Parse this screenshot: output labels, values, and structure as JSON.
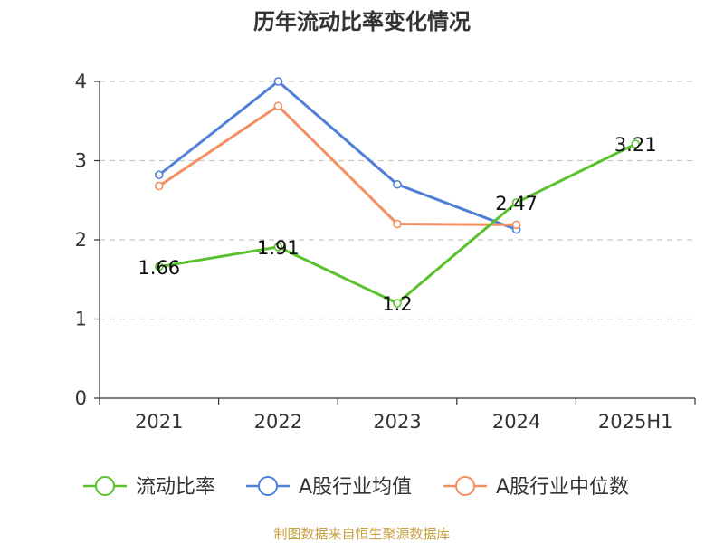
{
  "chart_data": {
    "type": "line",
    "title": "历年流动比率变化情况",
    "xlabel": "",
    "ylabel": "",
    "categories": [
      "2021",
      "2022",
      "2023",
      "2024",
      "2025H1"
    ],
    "ylim": [
      0,
      4
    ],
    "yticks": [
      "0",
      "1",
      "2",
      "3",
      "4"
    ],
    "grid": true,
    "legend_position": "bottom",
    "series": [
      {
        "name": "流动比率",
        "color": "#5cc12e",
        "values": [
          1.66,
          1.91,
          1.2,
          2.47,
          3.21
        ],
        "labels": [
          "1.66",
          "1.91",
          "1.2",
          "2.47",
          "3.21"
        ]
      },
      {
        "name": "A股行业均值",
        "color": "#4f7fd6",
        "values": [
          2.82,
          4.0,
          2.7,
          2.13,
          null
        ]
      },
      {
        "name": "A股行业中位数",
        "color": "#f29061",
        "values": [
          2.68,
          3.69,
          2.2,
          2.19,
          null
        ]
      }
    ],
    "source": "制图数据来自恒生聚源数据库"
  }
}
